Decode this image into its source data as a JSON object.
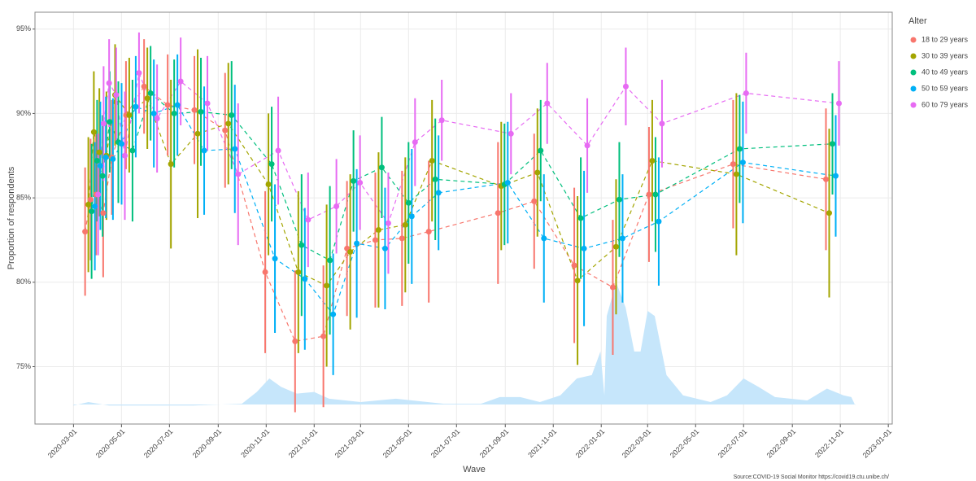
{
  "chart_data": {
    "type": "line",
    "x_label": "Wave",
    "y_label": "Proportion of respondents",
    "source": "Source:COVID-19 Social Monitor https://covid19.ctu.unibe.ch/",
    "legend_title": "Alter",
    "legend": "right",
    "grid": true,
    "xlim": [
      "2020-01-12",
      "2023-01-06"
    ],
    "xticks": [
      "2020-03-01",
      "2020-05-01",
      "2020-07-01",
      "2020-09-01",
      "2020-11-01",
      "2021-01-01",
      "2021-03-01",
      "2021-05-01",
      "2021-07-01",
      "2021-09-01",
      "2021-11-01",
      "2022-01-01",
      "2022-03-01",
      "2022-05-01",
      "2022-07-01",
      "2022-09-01",
      "2022-11-01",
      "2023-01-01"
    ],
    "ylim": [
      71.6,
      96.0
    ],
    "yticks": [
      {
        "value": 75,
        "label": "75%"
      },
      {
        "value": 80,
        "label": "80%"
      },
      {
        "value": 85,
        "label": "85%"
      },
      {
        "value": 90,
        "label": "90%"
      },
      {
        "value": 95,
        "label": "95%"
      }
    ],
    "x": [
      "2020-03-24",
      "2020-03-31",
      "2020-04-07",
      "2020-04-16",
      "2020-04-27",
      "2020-05-15",
      "2020-06-07",
      "2020-07-07",
      "2020-08-10",
      "2020-09-18",
      "2020-11-08",
      "2020-12-16",
      "2021-01-21",
      "2021-02-20",
      "2021-03-28",
      "2021-05-01",
      "2021-06-04",
      "2021-08-31",
      "2021-10-16",
      "2021-12-06",
      "2022-01-24",
      "2022-03-11",
      "2022-06-26",
      "2022-10-22"
    ],
    "series": [
      {
        "name": "18 to 29 years",
        "color": "#F8766D",
        "values": [
          83.0,
          84.9,
          85.2,
          84.1,
          87.4,
          89.9,
          91.6,
          90.5,
          90.2,
          89.0,
          80.6,
          76.5,
          76.8,
          82.0,
          82.5,
          82.6,
          83.0,
          84.1,
          84.8,
          81.0,
          79.7,
          85.2,
          87.0,
          86.1
        ],
        "error": [
          3.8,
          3.6,
          3.6,
          3.8,
          3.4,
          3.2,
          2.8,
          3.0,
          3.2,
          3.4,
          4.8,
          4.2,
          4.2,
          4.0,
          4.0,
          4.0,
          4.2,
          4.2,
          4.0,
          4.6,
          4.0,
          4.0,
          3.8,
          4.2
        ]
      },
      {
        "name": "30 to 39 years",
        "color": "#A3A500",
        "values": [
          84.6,
          88.9,
          87.7,
          87.5,
          91.1,
          89.9,
          90.9,
          87.0,
          88.8,
          89.4,
          85.8,
          80.6,
          79.8,
          81.8,
          83.1,
          83.4,
          87.2,
          85.7,
          86.5,
          80.1,
          82.1,
          87.2,
          86.4,
          84.1
        ],
        "error": [
          4.0,
          3.6,
          3.8,
          3.8,
          3.0,
          3.4,
          3.0,
          5.0,
          5.0,
          3.6,
          4.2,
          4.8,
          4.8,
          4.6,
          4.6,
          4.0,
          3.6,
          3.8,
          3.8,
          5.0,
          4.0,
          3.6,
          4.8,
          5.0
        ]
      },
      {
        "name": "40 to 49 years",
        "color": "#00BF7D",
        "values": [
          84.2,
          87.2,
          86.3,
          89.5,
          88.3,
          87.8,
          91.2,
          90.0,
          90.1,
          89.9,
          87.0,
          82.2,
          81.3,
          86.0,
          86.8,
          84.7,
          86.1,
          85.8,
          87.8,
          83.8,
          84.9,
          85.2,
          87.9,
          88.2
        ],
        "error": [
          4.0,
          3.6,
          3.6,
          3.0,
          3.6,
          4.2,
          2.8,
          3.2,
          3.2,
          3.2,
          3.4,
          4.2,
          4.4,
          3.0,
          3.0,
          3.6,
          3.6,
          3.6,
          3.0,
          3.6,
          3.4,
          3.4,
          3.2,
          3.0
        ]
      },
      {
        "name": "50 to 59 years",
        "color": "#00B0F6",
        "values": [
          84.5,
          86.9,
          87.4,
          87.3,
          88.2,
          90.4,
          90.0,
          90.5,
          87.8,
          87.9,
          81.4,
          80.2,
          78.1,
          82.3,
          82.0,
          83.9,
          85.3,
          85.9,
          82.6,
          82.0,
          82.6,
          83.6,
          87.1,
          86.3
        ],
        "error": [
          3.8,
          3.8,
          3.6,
          3.6,
          3.6,
          3.0,
          3.2,
          3.0,
          3.8,
          3.8,
          4.4,
          4.2,
          3.6,
          4.4,
          3.6,
          4.0,
          3.4,
          3.6,
          3.8,
          4.6,
          3.8,
          3.8,
          3.6,
          3.6
        ]
      },
      {
        "name": "60 to 79 years",
        "color": "#E76BF3",
        "values": [
          85.2,
          89.4,
          91.8,
          91.1,
          87.5,
          92.4,
          89.7,
          91.9,
          90.6,
          86.4,
          87.8,
          83.7,
          84.5,
          85.9,
          83.5,
          88.3,
          89.6,
          88.8,
          90.6,
          88.1,
          91.6,
          89.4,
          91.2,
          90.6
        ],
        "error": [
          3.6,
          3.4,
          2.6,
          2.8,
          3.8,
          2.4,
          3.2,
          2.6,
          2.8,
          4.2,
          3.2,
          2.8,
          2.8,
          2.8,
          3.0,
          2.6,
          2.4,
          2.4,
          2.4,
          2.8,
          2.3,
          2.6,
          2.4,
          2.5
        ]
      }
    ],
    "background_area": {
      "color": "#c6e6fb",
      "x": [
        "2020-03-01",
        "2020-03-20",
        "2020-04-15",
        "2020-08-01",
        "2020-10-01",
        "2020-10-20",
        "2020-11-05",
        "2020-11-20",
        "2020-12-10",
        "2021-01-01",
        "2021-01-20",
        "2021-03-01",
        "2021-04-15",
        "2021-06-15",
        "2021-08-01",
        "2021-08-25",
        "2021-09-20",
        "2021-10-15",
        "2021-11-10",
        "2021-12-01",
        "2021-12-20",
        "2021-12-31",
        "2022-01-05",
        "2022-01-08",
        "2022-01-20",
        "2022-02-01",
        "2022-02-12",
        "2022-02-20",
        "2022-03-01",
        "2022-03-10",
        "2022-03-25",
        "2022-04-15",
        "2022-05-20",
        "2022-06-10",
        "2022-07-01",
        "2022-07-20",
        "2022-08-10",
        "2022-09-20",
        "2022-10-15",
        "2022-11-05",
        "2022-11-15",
        "2022-11-20"
      ],
      "values": [
        72.7,
        72.9,
        72.7,
        72.7,
        72.8,
        73.5,
        74.3,
        73.8,
        73.4,
        73.5,
        73.1,
        72.9,
        73.1,
        72.8,
        72.8,
        73.2,
        73.2,
        72.9,
        73.3,
        74.3,
        74.5,
        75.9,
        73.3,
        78.0,
        80.0,
        78.5,
        75.9,
        75.9,
        78.3,
        78.0,
        74.5,
        73.3,
        72.9,
        73.3,
        74.3,
        73.8,
        73.2,
        73.0,
        73.7,
        73.3,
        73.2,
        72.7
      ]
    }
  }
}
